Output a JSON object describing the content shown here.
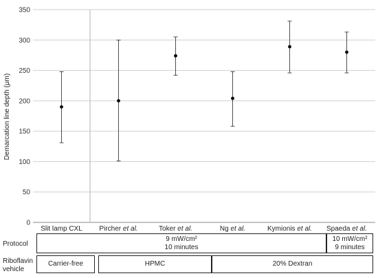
{
  "chart_data": {
    "type": "scatter",
    "ylabel": "Demarcation line depth (μm)",
    "ylim": [
      0,
      350
    ],
    "yticks": [
      0,
      50,
      100,
      150,
      200,
      250,
      300,
      350
    ],
    "grid": true,
    "categories": [
      {
        "name": "Slit lamp CXL",
        "suffix": ""
      },
      {
        "name": "Pircher",
        "suffix": " et al."
      },
      {
        "name": "Toker",
        "suffix": " et al."
      },
      {
        "name": "Ng",
        "suffix": " et al."
      },
      {
        "name": "Kymionis",
        "suffix": " et al."
      },
      {
        "name": "Spaeda",
        "suffix": " et al."
      }
    ],
    "values": [
      190,
      200,
      274,
      204,
      289,
      280
    ],
    "error_low": [
      131,
      101,
      242,
      158,
      246,
      246
    ],
    "error_high": [
      248,
      300,
      305,
      248,
      331,
      313
    ]
  },
  "table": {
    "protocol_label": "Protocol",
    "protocol_groups": [
      {
        "line1": "9 mW/cm²",
        "line2": "10 minutes"
      },
      {
        "line1": "10 mW/cm²",
        "line2": "9 minutes"
      }
    ],
    "vehicle_label_line1": "Riboflavin",
    "vehicle_label_line2": "vehicle",
    "vehicle_groups": [
      "Carrier-free",
      "HPMC",
      "20% Dextran"
    ]
  },
  "colors": {
    "grid": "#cfcfcf",
    "axis": "#888888",
    "separator": "#bdbdbd",
    "marker": "#000000"
  }
}
